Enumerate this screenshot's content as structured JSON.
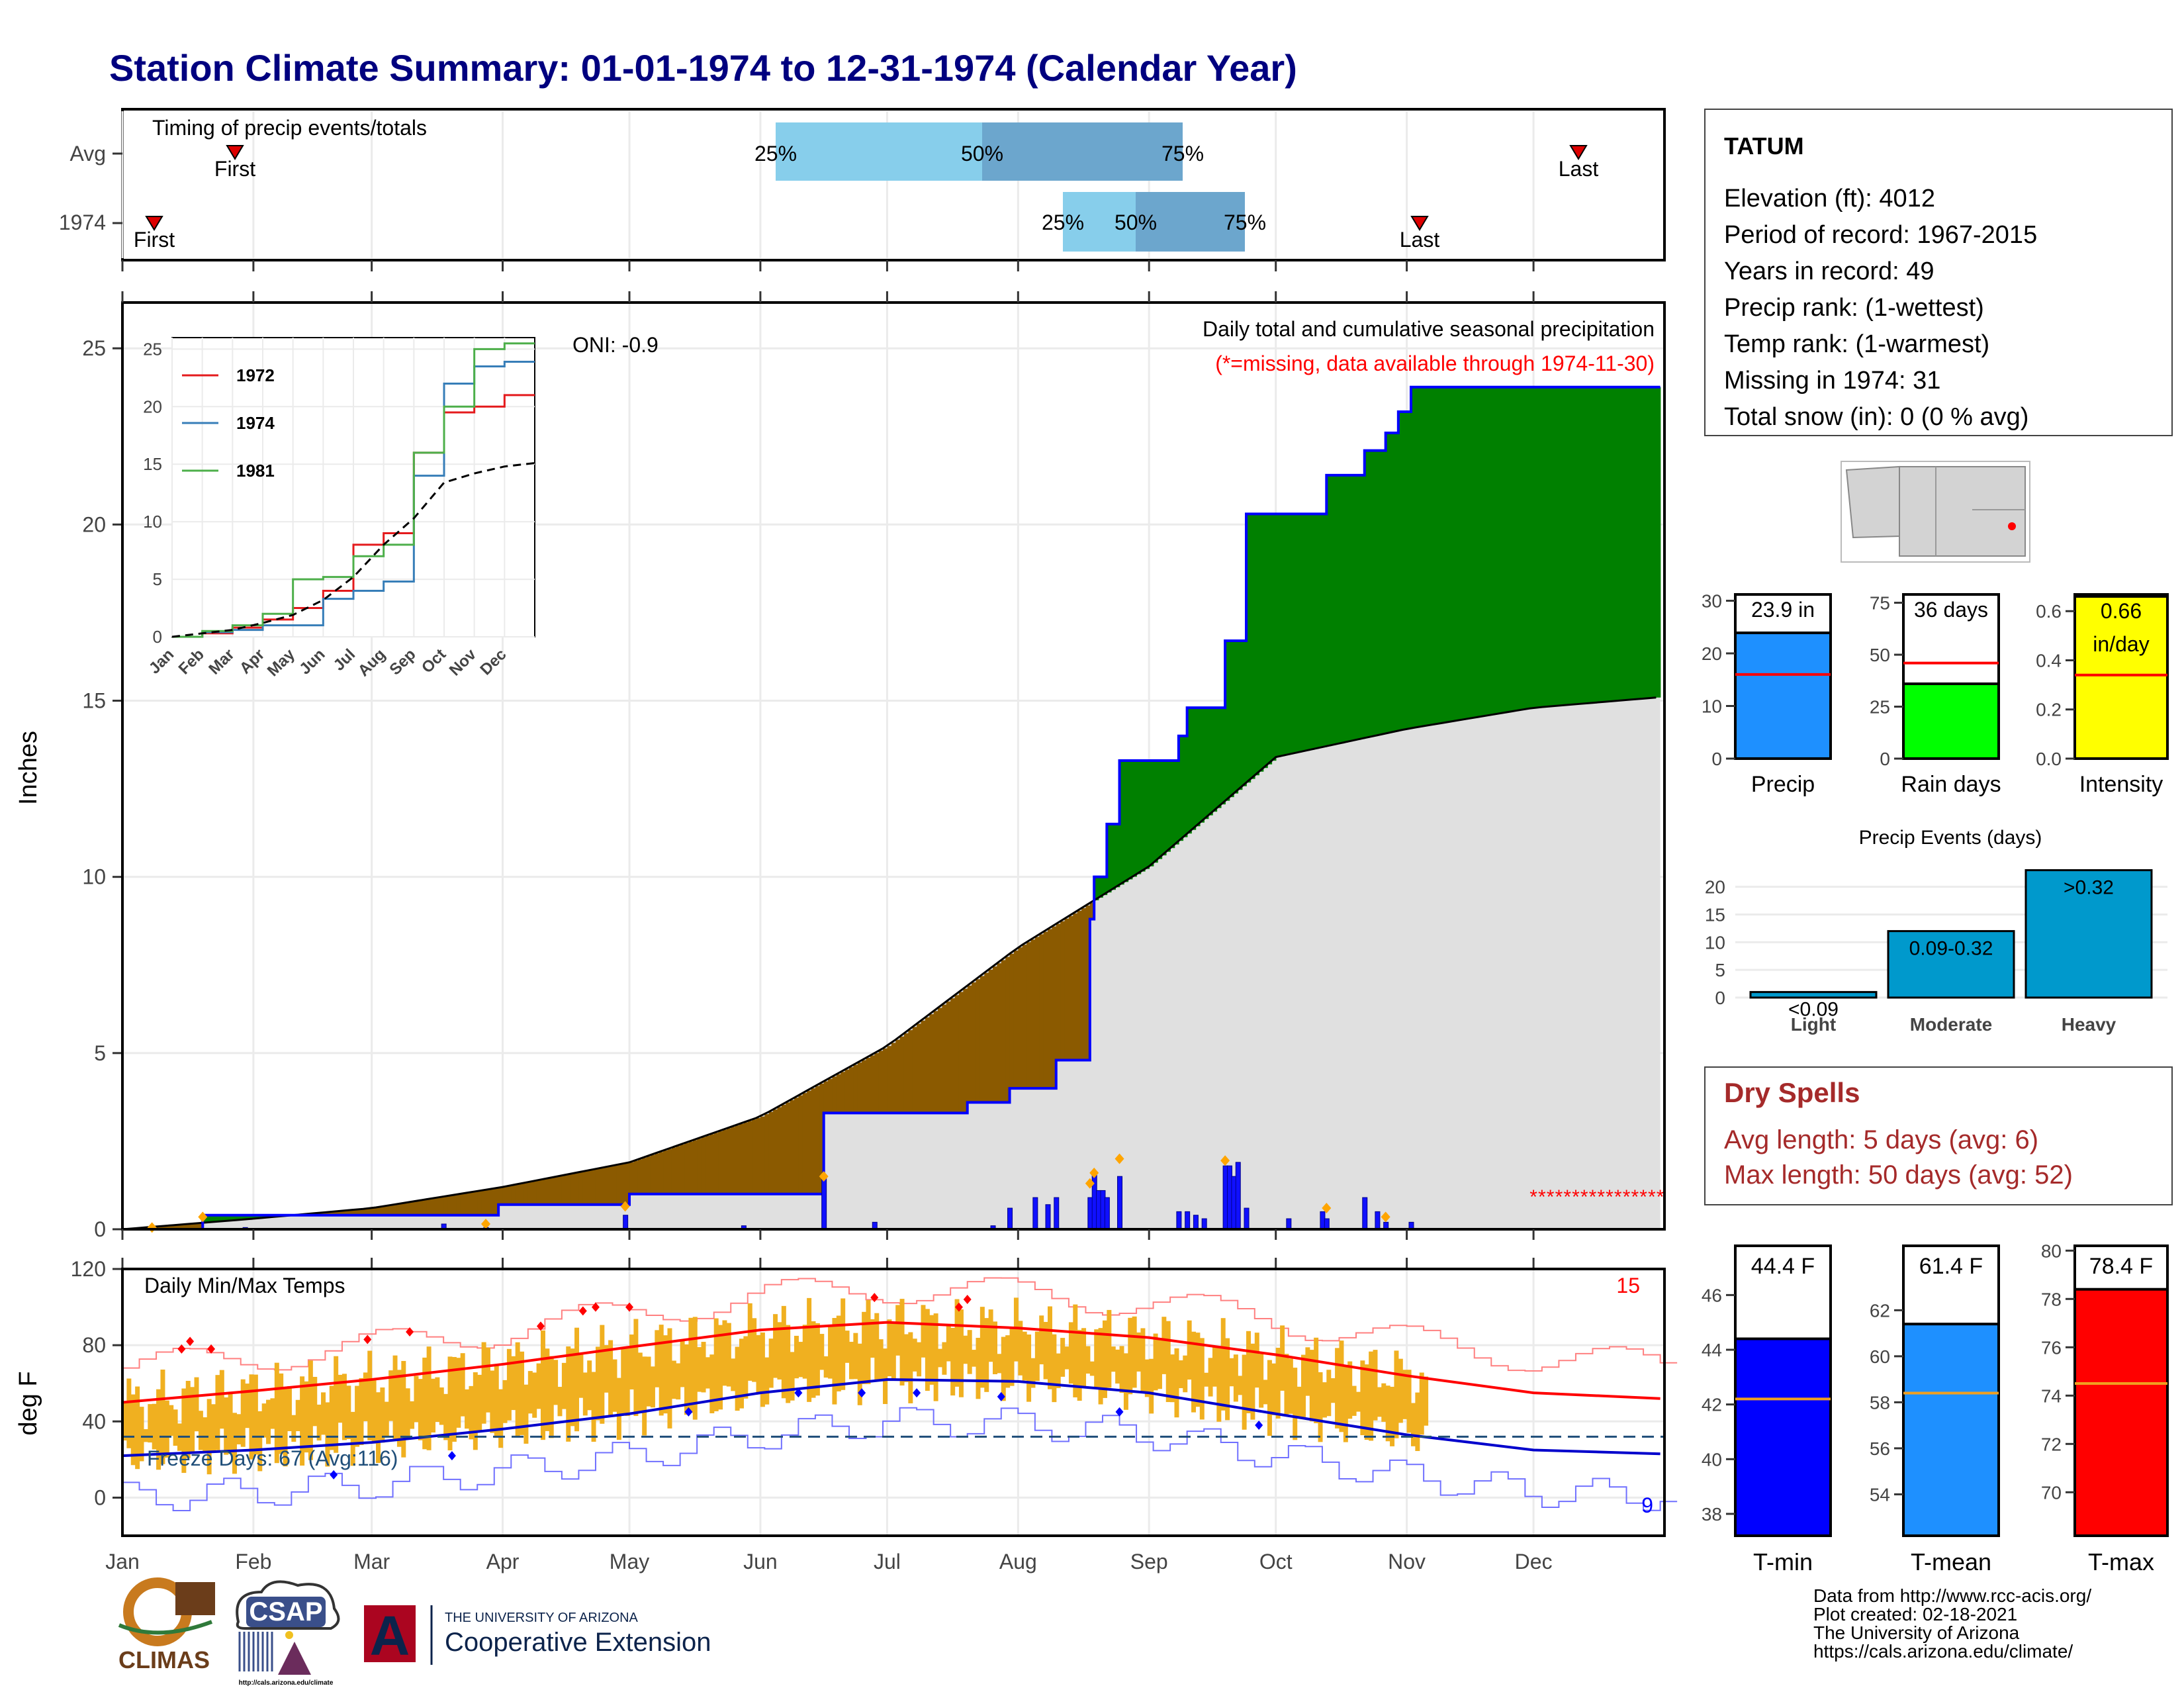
{
  "title": "Station Climate Summary: 01-01-1974 to 12-31-1974 (Calendar Year)",
  "timing": {
    "label": "Timing of precip events/totals",
    "rows": [
      "Avg",
      "1974"
    ],
    "avg": {
      "first": "First",
      "last": "Last",
      "p25": "25%",
      "p50": "50%",
      "p75": "75%"
    },
    "y1974": {
      "first": "First",
      "last": "Last",
      "p25": "25%",
      "p50": "50%",
      "p75": "75%"
    }
  },
  "precip_panel": {
    "ylabel": "Inches",
    "oni": "ONI: -0.9",
    "title": "Daily total and cumulative seasonal precipitation",
    "missing_note": "(*=missing, data available through 1974-11-30)",
    "y_ticks": [
      "0",
      "5",
      "10",
      "15",
      "20",
      "25"
    ]
  },
  "inset": {
    "legend": [
      "1972",
      "1974",
      "1981"
    ],
    "y_ticks": [
      "0",
      "5",
      "10",
      "15",
      "20",
      "25"
    ],
    "months": [
      "Jan",
      "Feb",
      "Mar",
      "Apr",
      "May",
      "Jun",
      "Jul",
      "Aug",
      "Sep",
      "Oct",
      "Nov",
      "Dec"
    ]
  },
  "temp_panel": {
    "ylabel": "deg F",
    "title": "Daily Min/Max Temps",
    "count_hot": "15",
    "count_cold": "9",
    "freeze": "Freeze Days: 67 (Avg:116)",
    "y_ticks": [
      "0",
      "40",
      "80",
      "120"
    ]
  },
  "months": [
    "Jan",
    "Feb",
    "Mar",
    "Apr",
    "May",
    "Jun",
    "Jul",
    "Aug",
    "Sep",
    "Oct",
    "Nov",
    "Dec"
  ],
  "station": {
    "name": "TATUM",
    "elevation": "Elevation (ft): 4012",
    "period": "Period of record: 1967-2015",
    "years": "Years in record: 49",
    "precip_rank": "Precip rank:  (1-wettest)",
    "temp_rank": "Temp rank:  (1-warmest)",
    "missing": "Missing in 1974: 31",
    "snow": "Total snow (in): 0 (0 % avg)"
  },
  "summary_bars": {
    "precip": {
      "label": "Precip",
      "value_text": "23.9 in",
      "value": 23.9,
      "avg": 16,
      "ticks": [
        "0",
        "10",
        "20",
        "30"
      ]
    },
    "rain_days": {
      "label": "Rain days",
      "value_text": "36 days",
      "value": 36,
      "avg": 46,
      "ticks": [
        "0",
        "25",
        "50",
        "75"
      ]
    },
    "intensity": {
      "label": "Intensity",
      "value_text": "0.66",
      "value_text2": "in/day",
      "value": 0.66,
      "avg": 0.34,
      "ticks": [
        "0.0",
        "0.2",
        "0.4",
        "0.6"
      ]
    }
  },
  "precip_events": {
    "title": "Precip Events (days)",
    "categories": [
      "Light",
      "Moderate",
      "Heavy"
    ],
    "labels": [
      "<0.09",
      "0.09-0.32",
      ">0.32"
    ],
    "values": [
      1,
      12,
      23
    ],
    "ticks": [
      "0",
      "5",
      "10",
      "15",
      "20"
    ]
  },
  "dry_spells": {
    "title": "Dry Spells",
    "avg": "Avg length: 5 days (avg: 6)",
    "max": "Max length: 50 days (avg: 52)"
  },
  "temp_bars": {
    "tmin": {
      "label": "T-min",
      "value_text": "44.4 F",
      "value": 44.4,
      "avg": 42.2,
      "ticks": [
        "38",
        "40",
        "42",
        "44",
        "46"
      ]
    },
    "tmean": {
      "label": "T-mean",
      "value_text": "61.4 F",
      "value": 61.4,
      "avg": 58.4,
      "ticks": [
        "54",
        "56",
        "58",
        "60",
        "62"
      ]
    },
    "tmax": {
      "label": "T-max",
      "value_text": "78.4 F",
      "value": 78.4,
      "avg": 74.5,
      "ticks": [
        "70",
        "72",
        "74",
        "76",
        "78",
        "80"
      ]
    }
  },
  "footer": {
    "line1": "Data from http://www.rcc-acis.org/",
    "line2": "Plot created: 02-18-2021",
    "line3": "The University of Arizona",
    "line4": "https://cals.arizona.edu/climate/"
  },
  "logos": {
    "climas": "CLIMAS",
    "csap": "CSAP",
    "csap_url": "http://cals.arizona.edu/climate",
    "ua_small": "THE UNIVERSITY OF ARIZONA",
    "ua_big": "Cooperative Extension",
    "ua_letter": "A"
  },
  "colors": {
    "title": "#00007f",
    "precip_cum": "#0000ff",
    "above_avg": "#008000",
    "below_avg": "#8b5a00",
    "avg_fill": "#e0e0e0",
    "tmax_line": "#ff0000",
    "tmin_line": "#0000cc",
    "temp_bars": "#f0b020",
    "precip_bar": "#1e90ff",
    "raindays_bar": "#00ff00",
    "intensity_bar": "#ffff00",
    "events_bar": "#0099cc"
  },
  "chart_data": [
    {
      "type": "line",
      "title": "Daily total and cumulative seasonal precipitation",
      "ylabel": "Inches",
      "ylim": [
        0,
        26
      ],
      "series": [
        {
          "name": "1974",
          "x": [
            "01-01",
            "01-20",
            "03-01",
            "03-31",
            "04-30",
            "05-01",
            "06-15",
            "06-16",
            "06-28",
            "07-20",
            "07-30",
            "08-10",
            "08-18",
            "08-19",
            "08-22",
            "08-25",
            "09-01",
            "09-08",
            "09-10",
            "09-19",
            "09-24",
            "10-04",
            "10-13",
            "10-22",
            "10-27",
            "10-30",
            "11-02",
            "11-30",
            "12-31"
          ],
          "y": [
            0.0,
            0.4,
            0.4,
            0.7,
            0.7,
            1.0,
            1.0,
            3.3,
            3.3,
            3.6,
            4.0,
            4.8,
            8.8,
            10.0,
            11.5,
            13.3,
            13.3,
            14.0,
            14.8,
            16.7,
            20.3,
            20.3,
            21.4,
            22.1,
            22.6,
            23.2,
            23.9,
            23.9,
            23.9
          ]
        },
        {
          "name": "Avg",
          "x": [
            "01-01",
            "02-01",
            "03-01",
            "04-01",
            "05-01",
            "06-01",
            "07-01",
            "08-01",
            "09-01",
            "10-01",
            "11-01",
            "12-01",
            "12-31"
          ],
          "y": [
            0.0,
            0.3,
            0.6,
            1.2,
            1.9,
            3.2,
            5.2,
            8.0,
            10.3,
            13.4,
            14.2,
            14.8,
            15.1
          ]
        }
      ],
      "daily_precip": {
        "x": [
          "01-30",
          "03-18",
          "03-28",
          "04-30",
          "05-28",
          "06-16",
          "06-28",
          "07-26",
          "07-30",
          "08-05",
          "08-08",
          "08-10",
          "08-18",
          "08-19",
          "08-20",
          "08-21",
          "08-22",
          "08-25",
          "09-08",
          "09-10",
          "09-12",
          "09-14",
          "09-19",
          "09-20",
          "09-21",
          "09-22",
          "09-24",
          "10-04",
          "10-12",
          "10-13",
          "10-22",
          "10-25",
          "10-27",
          "11-02"
        ],
        "y": [
          0.05,
          0.15,
          0.05,
          0.4,
          0.1,
          1.5,
          0.2,
          0.1,
          0.6,
          0.9,
          0.7,
          0.9,
          0.9,
          1.6,
          1.1,
          1.1,
          0.9,
          1.5,
          0.5,
          0.5,
          0.4,
          0.3,
          1.8,
          1.8,
          1.5,
          1.9,
          0.6,
          0.3,
          0.5,
          0.3,
          0.9,
          0.5,
          0.2,
          0.2
        ]
      }
    },
    {
      "type": "line",
      "title": "",
      "ylim": [
        0,
        26
      ],
      "series": [
        {
          "name": "1972",
          "x": [
            0,
            1,
            2,
            3,
            4,
            5,
            6,
            7,
            8,
            9,
            10,
            11,
            12
          ],
          "y": [
            0,
            0.3,
            0.8,
            1.5,
            2.5,
            4.0,
            8.0,
            9.0,
            16.0,
            19.5,
            20.0,
            21.0,
            21.0
          ]
        },
        {
          "name": "1974",
          "x": [
            0,
            1,
            2,
            3,
            4,
            5,
            6,
            7,
            8,
            9,
            10,
            11,
            12
          ],
          "y": [
            0,
            0.4,
            0.6,
            1.0,
            1.0,
            3.3,
            4.0,
            4.8,
            14.0,
            22.0,
            23.5,
            23.9,
            23.9
          ]
        },
        {
          "name": "1981",
          "x": [
            0,
            1,
            2,
            3,
            4,
            5,
            6,
            7,
            8,
            9,
            10,
            11,
            12
          ],
          "y": [
            0,
            0.5,
            1.0,
            2.0,
            5.0,
            5.2,
            7.0,
            8.0,
            16.0,
            20.0,
            25.0,
            25.5,
            25.5
          ]
        },
        {
          "name": "",
          "x": [
            0,
            1,
            2,
            3,
            4,
            5,
            6,
            7,
            8,
            9,
            10,
            11,
            12
          ],
          "y": [
            0,
            0.3,
            0.6,
            1.2,
            1.9,
            3.2,
            5.2,
            8.0,
            10.3,
            13.4,
            14.2,
            14.8,
            15.1
          ]
        }
      ]
    },
    {
      "type": "line",
      "title": "Daily Min/Max Temps",
      "ylabel": "deg F",
      "ylim": [
        -20,
        120
      ],
      "series": [
        {
          "name": "",
          "x": [
            "01-01",
            "02-01",
            "03-01",
            "04-01",
            "05-01",
            "06-01",
            "07-01",
            "08-01",
            "09-01",
            "10-01",
            "11-01",
            "12-01",
            "12-31"
          ],
          "y": [
            50,
            56,
            62,
            70,
            79,
            88,
            92,
            89,
            84,
            75,
            64,
            55,
            52
          ]
        },
        {
          "name": "",
          "x": [
            "01-01",
            "02-01",
            "03-01",
            "04-01",
            "05-01",
            "06-01",
            "07-01",
            "08-01",
            "09-01",
            "10-01",
            "11-01",
            "12-01",
            "12-31"
          ],
          "y": [
            22,
            25,
            29,
            36,
            44,
            55,
            62,
            61,
            55,
            44,
            33,
            25,
            23
          ]
        }
      ],
      "freeze_line": 32
    }
  ]
}
